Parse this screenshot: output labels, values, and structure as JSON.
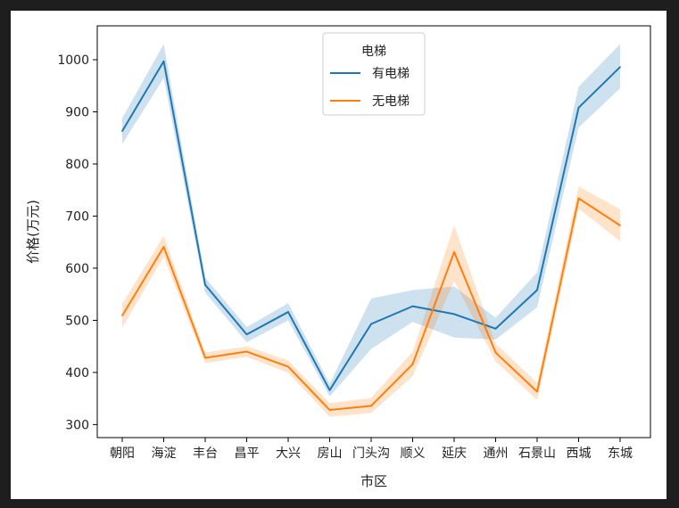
{
  "chart_data": {
    "type": "line",
    "xlabel": "市区",
    "ylabel": "价格(万元)",
    "categories": [
      "朝阳",
      "海淀",
      "丰台",
      "昌平",
      "大兴",
      "房山",
      "门头沟",
      "顺义",
      "延庆",
      "通州",
      "石景山",
      "西城",
      "东城"
    ],
    "ylim": [
      275,
      1065
    ],
    "yticks": [
      300,
      400,
      500,
      600,
      700,
      800,
      900,
      1000
    ],
    "grid": false,
    "legend": {
      "title": "电梯",
      "placement": "top-center",
      "entries": [
        "有电梯",
        "无电梯"
      ]
    },
    "series": [
      {
        "name": "有电梯",
        "color": "#1f77b4",
        "values": [
          863,
          997,
          568,
          473,
          516,
          366,
          493,
          527,
          512,
          484,
          558,
          908,
          986
        ],
        "ci_low": [
          838,
          965,
          553,
          458,
          500,
          354,
          445,
          497,
          467,
          463,
          525,
          870,
          945
        ],
        "ci_high": [
          888,
          1030,
          582,
          487,
          533,
          378,
          542,
          558,
          565,
          505,
          592,
          948,
          1030
        ]
      },
      {
        "name": "无电梯",
        "color": "#ff7f0e",
        "values": [
          509,
          641,
          428,
          440,
          411,
          328,
          336,
          416,
          631,
          438,
          363,
          734,
          682
        ],
        "ci_low": [
          486,
          622,
          418,
          430,
          399,
          315,
          322,
          393,
          575,
          421,
          347,
          714,
          652
        ],
        "ci_high": [
          532,
          662,
          438,
          450,
          423,
          341,
          351,
          440,
          682,
          455,
          380,
          757,
          713
        ]
      }
    ]
  }
}
